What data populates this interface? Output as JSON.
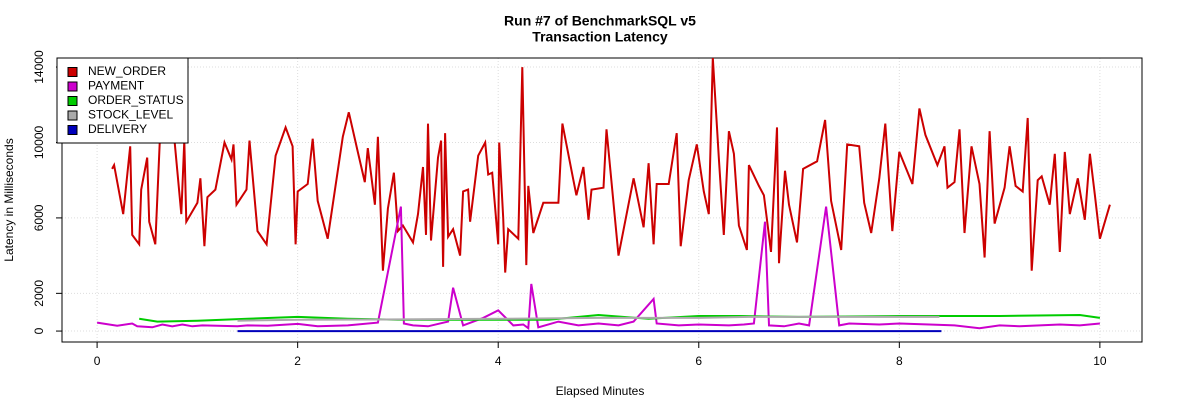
{
  "chart_data": {
    "type": "line",
    "title": "Run #7 of BenchmarkSQL v5",
    "subtitle": "Transaction Latency",
    "x_label": "Elapsed Minutes",
    "y_label": "Latency in Milliseconds",
    "xlim": [
      -0.35,
      10.42
    ],
    "xticks": [
      0,
      2,
      4,
      6,
      8,
      10
    ],
    "ylim": [
      -580,
      14480
    ],
    "yticks": [
      0,
      2000,
      6000,
      10000,
      14000
    ],
    "grid": true,
    "legend": "top-left",
    "series": [
      {
        "name": "NEW_ORDER",
        "color": "#cc0000",
        "x": [
          0.15,
          0.17,
          0.26,
          0.33,
          0.35,
          0.42,
          0.44,
          0.5,
          0.52,
          0.58,
          0.63,
          0.76,
          0.84,
          0.87,
          0.89,
          1.0,
          1.03,
          1.07,
          1.1,
          1.18,
          1.27,
          1.34,
          1.36,
          1.39,
          1.49,
          1.52,
          1.6,
          1.69,
          1.78,
          1.88,
          1.95,
          1.98,
          2.0,
          2.1,
          2.15,
          2.2,
          2.3,
          2.45,
          2.51,
          2.6,
          2.67,
          2.7,
          2.77,
          2.8,
          2.85,
          2.9,
          2.96,
          3.0,
          3.05,
          3.15,
          3.2,
          3.25,
          3.28,
          3.3,
          3.33,
          3.4,
          3.43,
          3.45,
          3.47,
          3.5,
          3.55,
          3.62,
          3.65,
          3.7,
          3.72,
          3.8,
          3.87,
          3.9,
          3.94,
          4.0,
          4.01,
          4.05,
          4.07,
          4.1,
          4.2,
          4.24,
          4.28,
          4.3,
          4.35,
          4.45,
          4.6,
          4.64,
          4.75,
          4.78,
          4.85,
          4.9,
          4.93,
          5.05,
          5.08,
          5.2,
          5.35,
          5.45,
          5.5,
          5.55,
          5.58,
          5.7,
          5.78,
          5.82,
          5.9,
          5.98,
          6.05,
          6.1,
          6.14,
          6.2,
          6.25,
          6.3,
          6.35,
          6.4,
          6.48,
          6.5,
          6.6,
          6.65,
          6.72,
          6.78,
          6.8,
          6.86,
          6.9,
          6.98,
          7.04,
          7.18,
          7.26,
          7.32,
          7.42,
          7.48,
          7.6,
          7.65,
          7.72,
          7.8,
          7.86,
          7.93,
          8.0,
          8.13,
          8.2,
          8.26,
          8.38,
          8.45,
          8.48,
          8.55,
          8.6,
          8.65,
          8.72,
          8.8,
          8.85,
          8.9,
          8.95,
          9.05,
          9.1,
          9.16,
          9.23,
          9.28,
          9.32,
          9.38,
          9.42,
          9.5,
          9.55,
          9.6,
          9.65,
          9.7,
          9.78,
          9.85,
          9.9,
          9.95,
          10.0,
          10.1
        ],
        "values": [
          8600,
          8800,
          6200,
          9800,
          5100,
          4600,
          7500,
          9200,
          5800,
          4600,
          10700,
          10800,
          6200,
          10100,
          5800,
          6800,
          8100,
          4500,
          7100,
          7500,
          10000,
          9100,
          9900,
          6700,
          7500,
          10100,
          5300,
          4600,
          9300,
          10800,
          9800,
          4600,
          7400,
          7800,
          10200,
          6900,
          4900,
          10300,
          11600,
          9500,
          7900,
          9700,
          6700,
          10300,
          3200,
          6500,
          8400,
          5300,
          5600,
          4700,
          6200,
          8700,
          5100,
          11000,
          4800,
          9200,
          10100,
          3400,
          10500,
          5000,
          5400,
          4000,
          7400,
          7500,
          5800,
          9300,
          10000,
          8300,
          8400,
          4600,
          10000,
          6000,
          3100,
          5400,
          4900,
          14000,
          3500,
          7700,
          5200,
          6800,
          6800,
          11000,
          8000,
          7200,
          8700,
          5900,
          7500,
          7600,
          10700,
          4000,
          8100,
          5500,
          8900,
          4600,
          7800,
          7800,
          10500,
          4500,
          8000,
          9900,
          7400,
          6200,
          14500,
          9200,
          5100,
          10600,
          9400,
          5600,
          4300,
          8800,
          7700,
          7200,
          4200,
          10800,
          3600,
          8500,
          6700,
          4700,
          8600,
          9000,
          11200,
          6900,
          4300,
          9900,
          9800,
          6800,
          5200,
          8100,
          11000,
          5300,
          9500,
          7800,
          11800,
          10400,
          8800,
          9800,
          7600,
          7900,
          10700,
          5200,
          9800,
          7800,
          3900,
          10600,
          5700,
          7600,
          9800,
          7700,
          7400,
          11300,
          3200,
          8000,
          8200,
          6700,
          9400,
          4200,
          9500,
          6200,
          8100,
          5900,
          9400,
          7200,
          4900,
          6700
        ]
      },
      {
        "name": "PAYMENT",
        "color": "#cc00cc",
        "x": [
          0,
          0.2,
          0.35,
          0.4,
          0.55,
          0.65,
          0.75,
          0.85,
          0.95,
          1.05,
          1.4,
          1.5,
          1.7,
          2.0,
          2.2,
          2.5,
          2.8,
          3.03,
          3.06,
          3.15,
          3.3,
          3.5,
          3.55,
          3.65,
          3.85,
          4.0,
          4.15,
          4.25,
          4.3,
          4.33,
          4.4,
          4.6,
          4.8,
          5.0,
          5.2,
          5.35,
          5.55,
          5.58,
          5.8,
          6.0,
          6.3,
          6.45,
          6.55,
          6.66,
          6.7,
          6.85,
          7.0,
          7.1,
          7.27,
          7.4,
          7.5,
          7.8,
          8.0,
          8.3,
          8.55,
          8.8,
          9.0,
          9.2,
          9.4,
          9.6,
          9.8,
          10.0
        ],
        "values": [
          450,
          280,
          400,
          250,
          200,
          350,
          250,
          350,
          250,
          300,
          250,
          300,
          280,
          380,
          250,
          300,
          450,
          6600,
          400,
          300,
          250,
          500,
          2300,
          300,
          700,
          1100,
          300,
          350,
          150,
          2500,
          200,
          500,
          300,
          400,
          300,
          500,
          1700,
          400,
          300,
          350,
          300,
          350,
          400,
          5800,
          300,
          250,
          400,
          300,
          6600,
          300,
          400,
          350,
          400,
          350,
          300,
          150,
          300,
          250,
          300,
          350,
          300,
          400
        ]
      },
      {
        "name": "ORDER_STATUS",
        "color": "#00cc00",
        "x": [
          0.42,
          0.6,
          1.0,
          1.5,
          2.0,
          2.5,
          3.0,
          4.0,
          4.5,
          5.0,
          5.5,
          6.0,
          6.4,
          7.0,
          8.0,
          9.0,
          9.8,
          10.0
        ],
        "values": [
          650,
          500,
          550,
          650,
          750,
          650,
          600,
          600,
          600,
          850,
          650,
          800,
          800,
          750,
          800,
          800,
          850,
          700
        ]
      },
      {
        "name": "STOCK_LEVEL",
        "color": "#aaaaaa",
        "x": [
          1.4,
          2.0,
          3.0,
          4.0,
          5.0,
          6.0,
          6.5,
          8.4
        ],
        "values": [
          550,
          600,
          620,
          650,
          700,
          700,
          750,
          750
        ]
      },
      {
        "name": "DELIVERY",
        "color": "#0000bb",
        "x": [
          1.4,
          3.0,
          5.0,
          7.0,
          8.42
        ],
        "values": [
          0,
          0,
          0,
          0,
          0
        ]
      }
    ]
  }
}
